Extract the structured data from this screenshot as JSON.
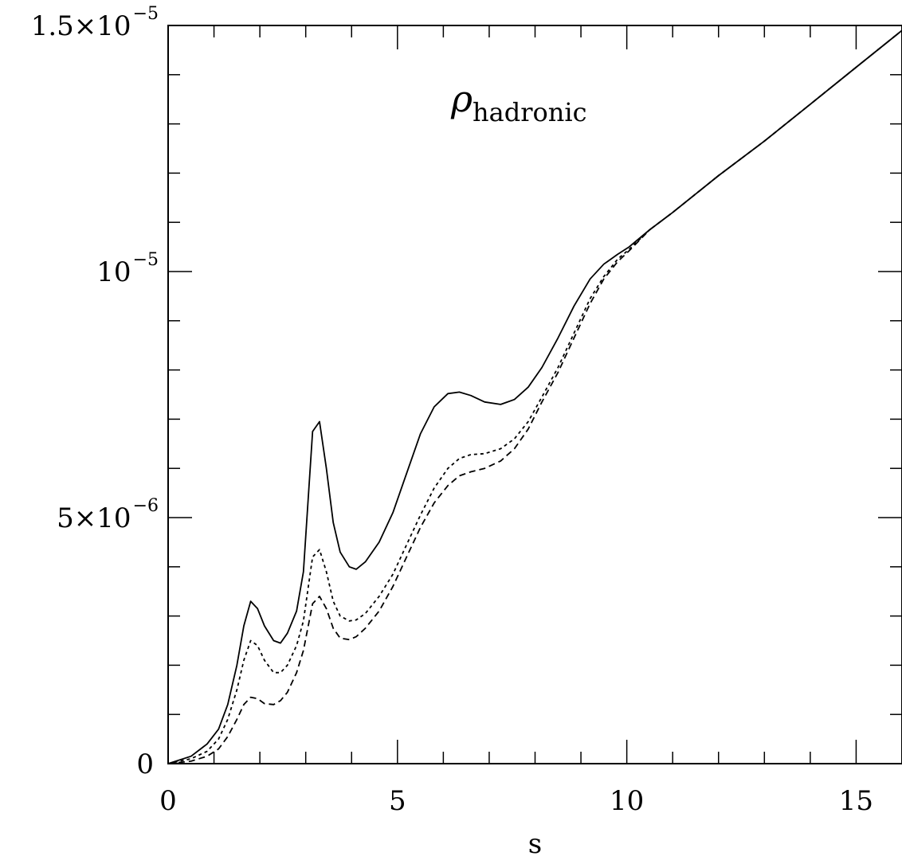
{
  "chart_data": {
    "type": "line",
    "title": "",
    "xlabel": "s",
    "ylabel": "",
    "xlim": [
      0,
      16
    ],
    "ylim": [
      0,
      1.5e-05
    ],
    "grid": false,
    "annotation": {
      "main": "ρ",
      "sub": "hadronic"
    },
    "x_ticks": [
      {
        "value": 0,
        "label": "0"
      },
      {
        "value": 5,
        "label": "5"
      },
      {
        "value": 10,
        "label": "10"
      },
      {
        "value": 15,
        "label": "15"
      }
    ],
    "y_ticks": [
      {
        "value": 0,
        "mantissa": "0",
        "exponent": ""
      },
      {
        "value": 5e-06,
        "mantissa": "5×10",
        "exponent": "−6"
      },
      {
        "value": 1e-05,
        "mantissa": "10",
        "exponent": "−5"
      },
      {
        "value": 1.5e-05,
        "mantissa": "1.5×10",
        "exponent": "−5"
      }
    ],
    "x_minor_step": 1,
    "y_minor_step": 1e-06,
    "series": [
      {
        "style": "solid",
        "x": [
          0,
          0.5,
          0.85,
          1.1,
          1.3,
          1.5,
          1.65,
          1.8,
          1.95,
          2.1,
          2.3,
          2.45,
          2.6,
          2.8,
          2.95,
          3.15,
          3.3,
          3.45,
          3.6,
          3.75,
          3.95,
          4.1,
          4.3,
          4.6,
          4.9,
          5.2,
          5.5,
          5.8,
          6.1,
          6.35,
          6.6,
          6.9,
          7.25,
          7.55,
          7.85,
          8.15,
          8.5,
          8.85,
          9.2,
          9.5,
          9.8,
          10.05,
          10.5,
          11,
          12,
          13,
          14,
          15,
          16
        ],
        "y": [
          0,
          1.5e-07,
          4e-07,
          7e-07,
          1.2e-06,
          2e-06,
          2.8e-06,
          3.3e-06,
          3.15e-06,
          2.8e-06,
          2.5e-06,
          2.45e-06,
          2.65e-06,
          3.1e-06,
          3.9e-06,
          6.75e-06,
          6.95e-06,
          6e-06,
          4.9e-06,
          4.3e-06,
          4e-06,
          3.95e-06,
          4.1e-06,
          4.5e-06,
          5.1e-06,
          5.9e-06,
          6.7e-06,
          7.25e-06,
          7.52e-06,
          7.55e-06,
          7.48e-06,
          7.35e-06,
          7.3e-06,
          7.4e-06,
          7.65e-06,
          8.05e-06,
          8.65e-06,
          9.3e-06,
          9.85e-06,
          1.015e-05,
          1.035e-05,
          1.05e-05,
          1.085e-05,
          1.12e-05,
          1.195e-05,
          1.265e-05,
          1.34e-05,
          1.415e-05,
          1.49e-05
        ]
      },
      {
        "style": "dotted",
        "x": [
          0,
          0.5,
          0.85,
          1.1,
          1.3,
          1.5,
          1.65,
          1.8,
          1.95,
          2.1,
          2.3,
          2.45,
          2.6,
          2.8,
          2.95,
          3.15,
          3.3,
          3.45,
          3.6,
          3.75,
          3.95,
          4.1,
          4.3,
          4.6,
          4.9,
          5.2,
          5.5,
          5.8,
          6.1,
          6.35,
          6.6,
          6.9,
          7.25,
          7.55,
          7.85,
          8.15,
          8.5,
          8.85,
          9.2,
          9.5,
          9.8,
          10.05,
          10.5,
          11,
          12,
          13,
          14,
          15,
          16
        ],
        "y": [
          0,
          1e-07,
          2.5e-07,
          5e-07,
          9e-07,
          1.5e-06,
          2.1e-06,
          2.5e-06,
          2.4e-06,
          2.1e-06,
          1.85e-06,
          1.85e-06,
          2e-06,
          2.4e-06,
          2.9e-06,
          4.2e-06,
          4.35e-06,
          3.9e-06,
          3.3e-06,
          3e-06,
          2.9e-06,
          2.92e-06,
          3.05e-06,
          3.4e-06,
          3.85e-06,
          4.45e-06,
          5.05e-06,
          5.6e-06,
          6e-06,
          6.2e-06,
          6.28e-06,
          6.3e-06,
          6.4e-06,
          6.6e-06,
          6.95e-06,
          7.45e-06,
          8.05e-06,
          8.75e-06,
          9.45e-06,
          9.9e-06,
          1.025e-05,
          1.045e-05,
          1.085e-05,
          1.12e-05,
          1.195e-05,
          1.265e-05,
          1.34e-05,
          1.415e-05,
          1.49e-05
        ]
      },
      {
        "style": "dashed",
        "x": [
          0,
          0.5,
          0.85,
          1.1,
          1.3,
          1.5,
          1.65,
          1.8,
          1.95,
          2.1,
          2.3,
          2.45,
          2.6,
          2.8,
          2.95,
          3.15,
          3.3,
          3.45,
          3.6,
          3.75,
          3.95,
          4.1,
          4.3,
          4.6,
          4.9,
          5.2,
          5.5,
          5.8,
          6.1,
          6.35,
          6.6,
          6.9,
          7.25,
          7.55,
          7.85,
          8.15,
          8.5,
          8.85,
          9.2,
          9.5,
          9.8,
          10.05,
          10.5,
          11,
          12,
          13,
          14,
          15,
          16
        ],
        "y": [
          0,
          5e-08,
          1.5e-07,
          3e-07,
          5.5e-07,
          9e-07,
          1.2e-06,
          1.35e-06,
          1.32e-06,
          1.22e-06,
          1.2e-06,
          1.28e-06,
          1.45e-06,
          1.85e-06,
          2.3e-06,
          3.25e-06,
          3.4e-06,
          3.15e-06,
          2.75e-06,
          2.55e-06,
          2.52e-06,
          2.58e-06,
          2.75e-06,
          3.1e-06,
          3.6e-06,
          4.2e-06,
          4.8e-06,
          5.3e-06,
          5.65e-06,
          5.85e-06,
          5.93e-06,
          6e-06,
          6.15e-06,
          6.4e-06,
          6.8e-06,
          7.35e-06,
          7.95e-06,
          8.65e-06,
          9.35e-06,
          9.85e-06,
          1.02e-05,
          1.042e-05,
          1.085e-05,
          1.12e-05,
          1.195e-05,
          1.265e-05,
          1.34e-05,
          1.415e-05,
          1.49e-05
        ]
      }
    ]
  }
}
